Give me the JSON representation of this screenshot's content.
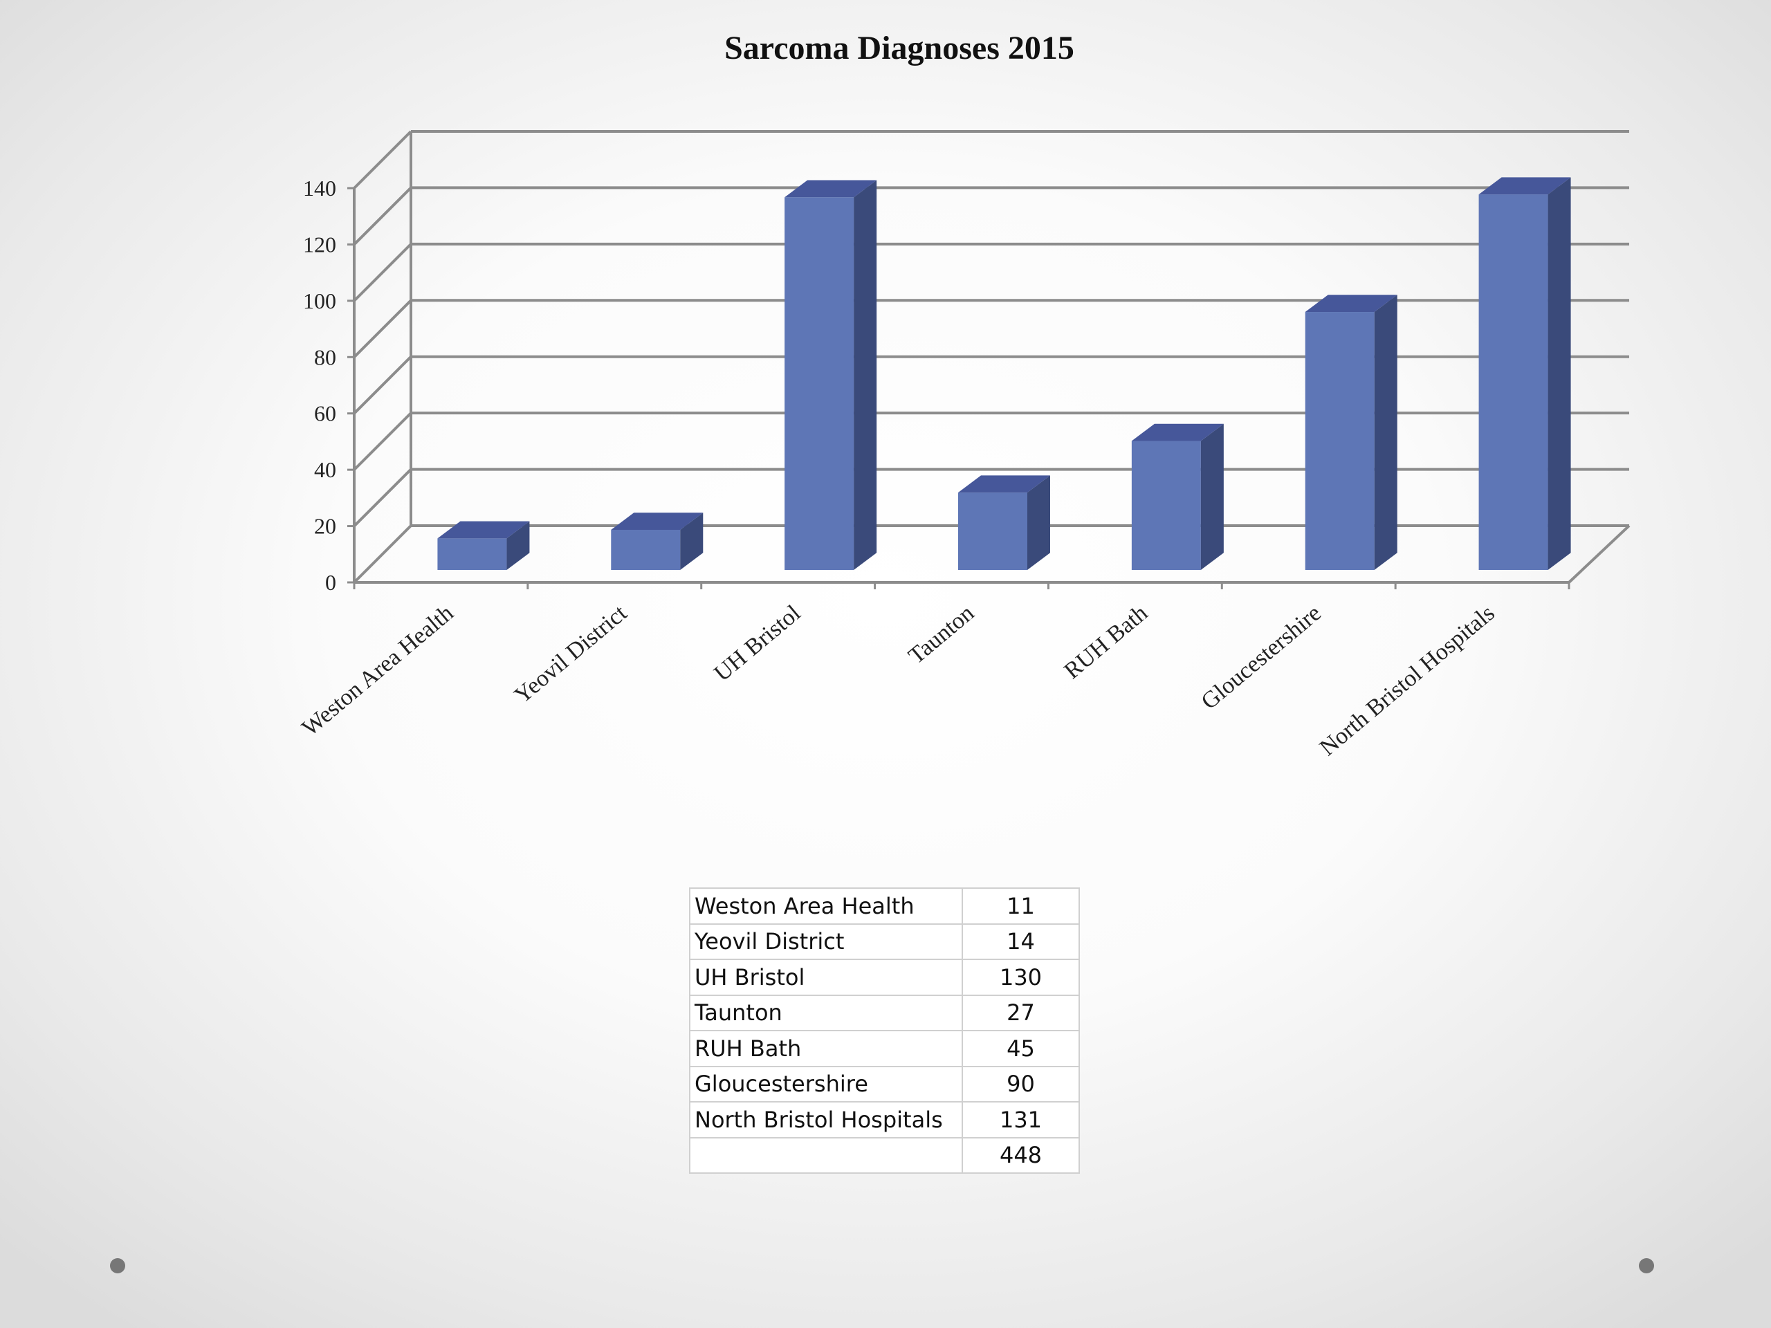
{
  "chart_data": {
    "type": "bar",
    "title": "Sarcoma Diagnoses 2015",
    "xlabel": "",
    "ylabel": "",
    "categories": [
      "Weston Area Health",
      "Yeovil District",
      "UH Bristol",
      "Taunton",
      "RUH Bath",
      "Gloucestershire",
      "North Bristol Hospitals"
    ],
    "values": [
      11,
      14,
      130,
      27,
      45,
      90,
      131
    ],
    "ylim": [
      0,
      140
    ],
    "yticks": [
      "0",
      "20",
      "40",
      "60",
      "80",
      "100",
      "120",
      "140"
    ],
    "grid": true,
    "style": "3d-column",
    "colors": {
      "bar_front": "#5e76b6",
      "bar_side": "#3a4a7a",
      "bar_top": "#46579a"
    }
  },
  "table": {
    "rows": [
      {
        "name": "Weston Area Health",
        "value": "11"
      },
      {
        "name": "Yeovil District",
        "value": "14"
      },
      {
        "name": "UH Bristol",
        "value": "130"
      },
      {
        "name": "Taunton",
        "value": "27"
      },
      {
        "name": "RUH Bath",
        "value": "45"
      },
      {
        "name": "Gloucestershire",
        "value": "90"
      },
      {
        "name": "North Bristol Hospitals",
        "value": "131"
      },
      {
        "name": "",
        "value": "448"
      }
    ]
  }
}
